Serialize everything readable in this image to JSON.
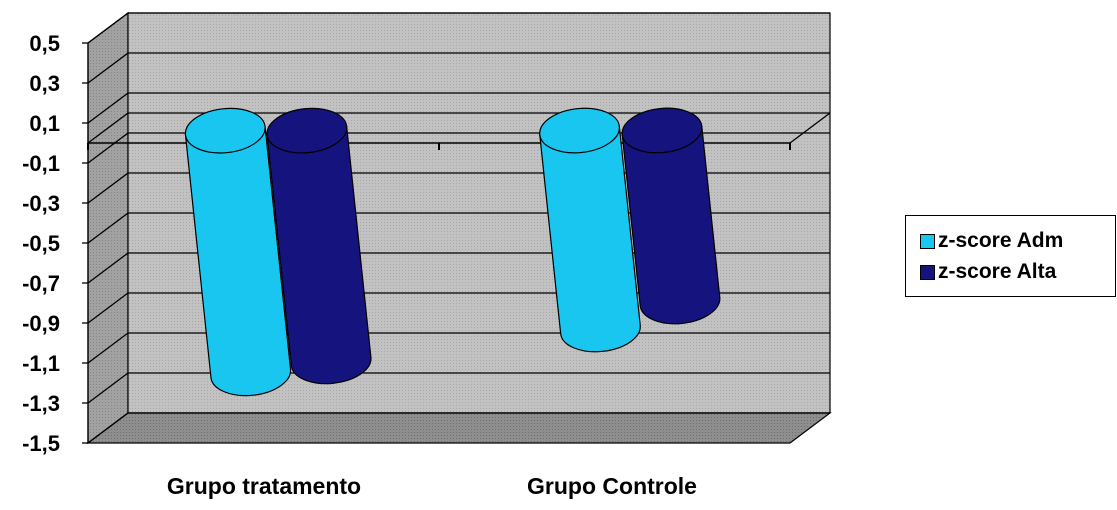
{
  "chart_data": {
    "type": "bar",
    "categories": [
      "Grupo tratamento",
      "Grupo Controle"
    ],
    "series": [
      {
        "name": "z-score Adm",
        "values": [
          -1.22,
          -1.0
        ],
        "color": "#19C6F0"
      },
      {
        "name": "z-score Alta",
        "values": [
          -1.16,
          -0.86
        ],
        "color": "#15137E"
      }
    ],
    "y_ticks": [
      "0,5",
      "0,3",
      "0,1",
      "-0,1",
      "-0,3",
      "-0,5",
      "-0,7",
      "-0,9",
      "-1,1",
      "-1,3",
      "-1,5"
    ],
    "ylim": [
      -1.5,
      0.5
    ],
    "grid": true,
    "legend_position": "right",
    "colors": {
      "wall": "#C0C0C0",
      "wall_side": "#9C9C9C",
      "floor": "#8C8C8C"
    }
  }
}
